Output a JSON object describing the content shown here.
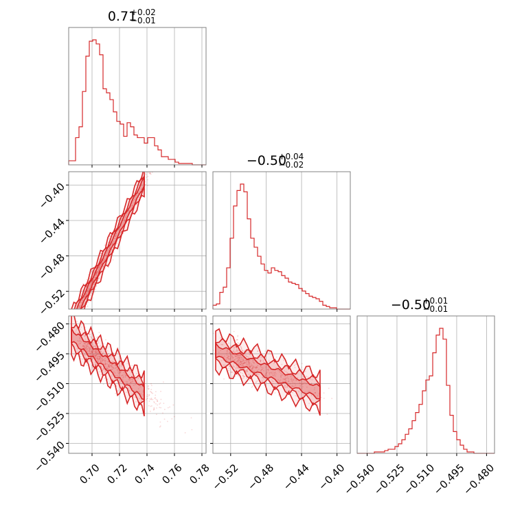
{
  "chart_data": {
    "type": "corner",
    "title": "",
    "color": "#d62728",
    "parameters": [
      {
        "median": "0.71",
        "plus": "+0.02",
        "minus": "−0.01",
        "range": [
          0.683,
          0.783
        ],
        "ticks": [
          0.7,
          0.72,
          0.74,
          0.76,
          0.78
        ],
        "tick_labels": [
          "0.70",
          "0.72",
          "0.74",
          "0.76",
          "0.78"
        ],
        "hist": [
          0.03,
          0.03,
          0.2,
          0.28,
          0.54,
          0.8,
          0.91,
          0.92,
          0.89,
          0.81,
          0.56,
          0.53,
          0.48,
          0.39,
          0.32,
          0.3,
          0.21,
          0.31,
          0.28,
          0.22,
          0.2,
          0.2,
          0.16,
          0.2,
          0.2,
          0.14,
          0.11,
          0.06,
          0.06,
          0.04,
          0.04,
          0.02,
          0.01,
          0.01,
          0.01,
          0.01,
          0.0,
          0.0,
          0.0,
          0.0
        ]
      },
      {
        "median": "−0.50",
        "plus": "+0.04",
        "minus": "−0.02",
        "range": [
          -0.54,
          -0.385
        ],
        "ticks": [
          -0.52,
          -0.48,
          -0.44,
          -0.4
        ],
        "tick_labels": [
          "−0.52",
          "−0.48",
          "−0.44",
          "−0.40"
        ],
        "hist": [
          0.03,
          0.04,
          0.13,
          0.17,
          0.32,
          0.55,
          0.8,
          0.92,
          0.97,
          0.91,
          0.7,
          0.55,
          0.48,
          0.41,
          0.35,
          0.3,
          0.28,
          0.32,
          0.3,
          0.29,
          0.26,
          0.24,
          0.21,
          0.2,
          0.19,
          0.16,
          0.14,
          0.12,
          0.1,
          0.09,
          0.08,
          0.06,
          0.03,
          0.02,
          0.01,
          0.01,
          0.0,
          0.0,
          0.0,
          0.0
        ]
      },
      {
        "median": "−0.50",
        "plus": "+0.01",
        "minus": "−0.01",
        "range": [
          -0.545,
          -0.476
        ],
        "ticks": [
          -0.54,
          -0.525,
          -0.51,
          -0.495,
          -0.48
        ],
        "tick_labels": [
          "−0.540",
          "−0.525",
          "−0.510",
          "−0.495",
          "−0.480"
        ],
        "hist": [
          0.0,
          0.0,
          0.0,
          0.0,
          0.0,
          0.01,
          0.01,
          0.01,
          0.02,
          0.03,
          0.03,
          0.05,
          0.07,
          0.1,
          0.14,
          0.18,
          0.24,
          0.3,
          0.36,
          0.46,
          0.54,
          0.57,
          0.74,
          0.87,
          0.92,
          0.84,
          0.5,
          0.28,
          0.16,
          0.1,
          0.06,
          0.03,
          0.01,
          0.01,
          0.0,
          0.0,
          0.0,
          0.0,
          0.0,
          0.0
        ]
      }
    ],
    "joint": [
      {
        "pair": [
          0,
          1
        ],
        "slope": 3.0,
        "intercept": -2.61,
        "width": 0.006
      },
      {
        "pair": [
          0,
          2
        ],
        "slope": -0.55,
        "intercept": -0.109,
        "width": 0.004
      },
      {
        "pair": [
          1,
          2
        ],
        "slope": -0.18,
        "intercept": -0.59,
        "width": 0.004
      }
    ],
    "grid": true,
    "legend": "none"
  }
}
